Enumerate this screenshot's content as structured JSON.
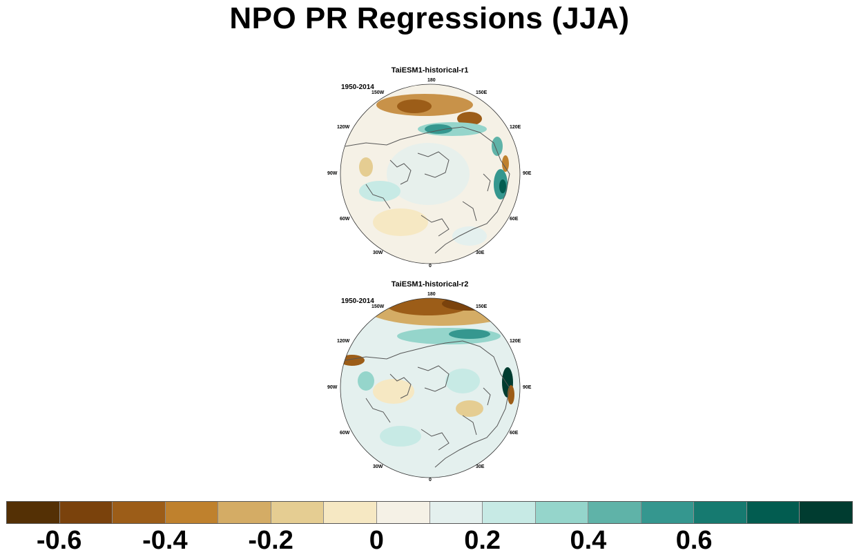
{
  "title": "NPO PR Regressions (JJA)",
  "panels": [
    {
      "title": "TaiESM1-historical-r1",
      "period": "1950-2014",
      "lon_labels": [
        "180",
        "150E",
        "120E",
        "90E",
        "60E",
        "30E",
        "0",
        "30W",
        "60W",
        "90W",
        "120W",
        "150W"
      ]
    },
    {
      "title": "TaiESM1-historical-r2",
      "period": "1950-2014",
      "lon_labels": [
        "180",
        "150E",
        "120E",
        "90E",
        "60E",
        "30E",
        "0",
        "30W",
        "60W",
        "90W",
        "120W",
        "150W"
      ]
    }
  ],
  "colorbar": {
    "colors": [
      "#543005",
      "#7a420c",
      "#9c5d18",
      "#bf812d",
      "#d4ac65",
      "#e5cd92",
      "#f6e8c3",
      "#f5f1e6",
      "#e4f0ee",
      "#c7eae5",
      "#95d5cb",
      "#5fb3a8",
      "#35978f",
      "#167a70",
      "#025c50",
      "#003c30"
    ],
    "labels": [
      "-0.6",
      "-0.4",
      "-0.2",
      "0",
      "0.2",
      "0.4",
      "0.6"
    ]
  }
}
